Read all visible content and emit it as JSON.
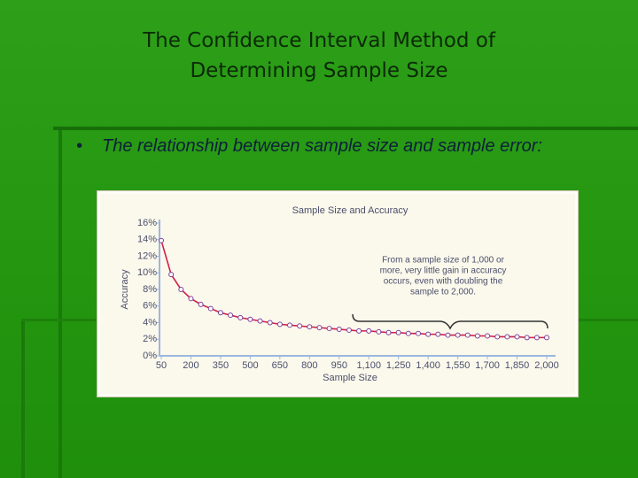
{
  "slide": {
    "title_lines": [
      "The Confidence Interval Method of",
      "Determining Sample Size"
    ],
    "bullet": "The relationship between sample size and sample error:"
  },
  "chart_data": {
    "type": "line",
    "title": "Sample Size and Accuracy",
    "x_label": "Sample Size",
    "y_label": "Accuracy",
    "x": [
      50,
      100,
      150,
      200,
      250,
      300,
      350,
      400,
      450,
      500,
      550,
      600,
      650,
      700,
      750,
      800,
      850,
      900,
      950,
      1000,
      1050,
      1100,
      1150,
      1200,
      1250,
      1300,
      1350,
      1400,
      1450,
      1500,
      1550,
      1600,
      1650,
      1700,
      1750,
      1800,
      1850,
      1900,
      1950,
      2000
    ],
    "series": [
      {
        "color": "#d0204a",
        "values": [
          13.9,
          9.8,
          8.0,
          6.9,
          6.2,
          5.7,
          5.2,
          4.9,
          4.6,
          4.4,
          4.2,
          4.0,
          3.8,
          3.7,
          3.6,
          3.5,
          3.4,
          3.3,
          3.2,
          3.1,
          3.0,
          3.0,
          2.9,
          2.8,
          2.8,
          2.7,
          2.7,
          2.6,
          2.6,
          2.5,
          2.5,
          2.5,
          2.4,
          2.4,
          2.3,
          2.3,
          2.3,
          2.2,
          2.2,
          2.2
        ]
      }
    ],
    "xlim": [
      50,
      2000
    ],
    "xticks": [
      50,
      200,
      350,
      500,
      650,
      800,
      950,
      {
        "value": 1100,
        "label": "1,100"
      },
      {
        "value": 1250,
        "label": "1,250"
      },
      {
        "value": 1400,
        "label": "1,400"
      },
      {
        "value": 1550,
        "label": "1,550"
      },
      {
        "value": 1700,
        "label": "1,700"
      },
      {
        "value": 1850,
        "label": "1,850"
      },
      {
        "value": 2000,
        "label": "2,000"
      }
    ],
    "ylim": [
      0,
      16
    ],
    "yticks": [
      {
        "value": 0,
        "label": "0%"
      },
      {
        "value": 2,
        "label": "2%"
      },
      {
        "value": 4,
        "label": "4%"
      },
      {
        "value": 6,
        "label": "6%"
      },
      {
        "value": 8,
        "label": "8%"
      },
      {
        "value": 10,
        "label": "10%"
      },
      {
        "value": 12,
        "label": "12%"
      },
      {
        "value": 14,
        "label": "14%"
      },
      {
        "value": 16,
        "label": "16%"
      }
    ],
    "annotation_lines": [
      "From a sample size of 1,000 or",
      "more, very little gain in accuracy",
      "occurs, even with doubling the",
      "sample to 2,000."
    ]
  }
}
